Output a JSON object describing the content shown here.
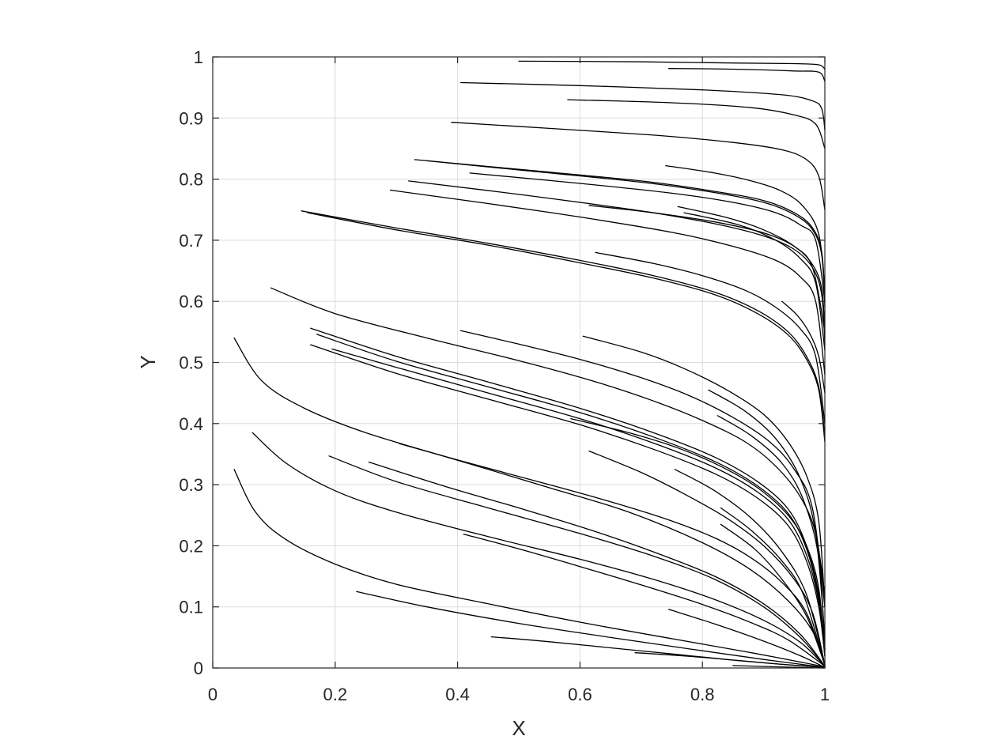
{
  "chart_data": {
    "type": "line",
    "title": "",
    "xlabel": "X",
    "ylabel": "Y",
    "xlim": [
      0,
      1
    ],
    "ylim": [
      0,
      1
    ],
    "grid": true,
    "legend": "none",
    "line_color": "#000000",
    "x_ticks": [
      0,
      0.2,
      0.4,
      0.6,
      0.8,
      1
    ],
    "y_ticks": [
      0,
      0.1,
      0.2,
      0.3,
      0.4,
      0.5,
      0.6,
      0.7,
      0.8,
      0.9,
      1
    ],
    "x_tick_labels": [
      "0",
      "0.2",
      "0.4",
      "0.6",
      "0.8",
      "1"
    ],
    "y_tick_labels": [
      "0",
      "0.1",
      "0.2",
      "0.3",
      "0.4",
      "0.5",
      "0.6",
      "0.7",
      "0.8",
      "0.9",
      "1"
    ],
    "series": [
      {
        "x": [
          0.5,
          0.7,
          0.85,
          0.95,
          0.99,
          1.0
        ],
        "y": [
          0.993,
          0.992,
          0.99,
          0.989,
          0.987,
          0.98
        ]
      },
      {
        "x": [
          0.745,
          0.85,
          0.95,
          0.99,
          1.0
        ],
        "y": [
          0.981,
          0.98,
          0.977,
          0.975,
          0.96
        ]
      },
      {
        "x": [
          0.405,
          0.6,
          0.8,
          0.93,
          0.98,
          0.995,
          1.0
        ],
        "y": [
          0.958,
          0.953,
          0.946,
          0.938,
          0.928,
          0.915,
          0.88
        ]
      },
      {
        "x": [
          0.58,
          0.75,
          0.88,
          0.95,
          0.985,
          1.0
        ],
        "y": [
          0.93,
          0.925,
          0.917,
          0.905,
          0.89,
          0.85
        ]
      },
      {
        "x": [
          0.39,
          0.55,
          0.72,
          0.85,
          0.93,
          0.97,
          0.99,
          1.0
        ],
        "y": [
          0.893,
          0.883,
          0.872,
          0.86,
          0.848,
          0.832,
          0.805,
          0.75
        ]
      },
      {
        "x": [
          0.33,
          0.5,
          0.7,
          0.82,
          0.9,
          0.95,
          0.98,
          0.995,
          1.0
        ],
        "y": [
          0.832,
          0.816,
          0.797,
          0.78,
          0.765,
          0.745,
          0.72,
          0.68,
          0.6
        ]
      },
      {
        "x": [
          0.35,
          0.5,
          0.7,
          0.82,
          0.9,
          0.95,
          0.98,
          0.995,
          1.0
        ],
        "y": [
          0.83,
          0.815,
          0.795,
          0.778,
          0.762,
          0.742,
          0.717,
          0.675,
          0.59
        ]
      },
      {
        "x": [
          0.42,
          0.6,
          0.75,
          0.85,
          0.92,
          0.96,
          0.985,
          1.0
        ],
        "y": [
          0.81,
          0.793,
          0.777,
          0.762,
          0.745,
          0.725,
          0.7,
          0.6
        ]
      },
      {
        "x": [
          0.32,
          0.5,
          0.7,
          0.82,
          0.9,
          0.95,
          0.98,
          0.995,
          1.0
        ],
        "y": [
          0.797,
          0.775,
          0.748,
          0.727,
          0.707,
          0.685,
          0.655,
          0.61,
          0.53
        ]
      },
      {
        "x": [
          0.29,
          0.45,
          0.6,
          0.75,
          0.85,
          0.92,
          0.96,
          0.985,
          1.0
        ],
        "y": [
          0.782,
          0.76,
          0.738,
          0.713,
          0.69,
          0.667,
          0.64,
          0.6,
          0.48
        ]
      },
      {
        "x": [
          0.74,
          0.82,
          0.88,
          0.93,
          0.965,
          0.99,
          1.0
        ],
        "y": [
          0.822,
          0.81,
          0.797,
          0.78,
          0.755,
          0.71,
          0.62
        ]
      },
      {
        "x": [
          0.615,
          0.72,
          0.82,
          0.9,
          0.95,
          0.98,
          0.995,
          1.0
        ],
        "y": [
          0.757,
          0.745,
          0.73,
          0.712,
          0.69,
          0.66,
          0.62,
          0.55
        ]
      },
      {
        "x": [
          0.76,
          0.84,
          0.9,
          0.95,
          0.98,
          1.0
        ],
        "y": [
          0.755,
          0.737,
          0.717,
          0.69,
          0.655,
          0.55
        ]
      },
      {
        "x": [
          0.77,
          0.86,
          0.92,
          0.96,
          0.985,
          1.0
        ],
        "y": [
          0.745,
          0.725,
          0.7,
          0.67,
          0.63,
          0.52
        ]
      },
      {
        "x": [
          0.145,
          0.3,
          0.45,
          0.6,
          0.72,
          0.82,
          0.89,
          0.94,
          0.97,
          0.99,
          1.0
        ],
        "y": [
          0.748,
          0.72,
          0.695,
          0.667,
          0.642,
          0.615,
          0.585,
          0.55,
          0.51,
          0.46,
          0.38
        ]
      },
      {
        "x": [
          0.155,
          0.3,
          0.45,
          0.6,
          0.72,
          0.82,
          0.89,
          0.94,
          0.97,
          0.99,
          1.0
        ],
        "y": [
          0.745,
          0.717,
          0.692,
          0.663,
          0.638,
          0.611,
          0.58,
          0.545,
          0.505,
          0.455,
          0.37
        ]
      },
      {
        "x": [
          0.625,
          0.72,
          0.8,
          0.87,
          0.92,
          0.96,
          0.985,
          1.0
        ],
        "y": [
          0.68,
          0.662,
          0.642,
          0.618,
          0.59,
          0.555,
          0.51,
          0.4
        ]
      },
      {
        "x": [
          0.93,
          0.955,
          0.975,
          0.99,
          1.0
        ],
        "y": [
          0.6,
          0.577,
          0.548,
          0.51,
          0.45
        ]
      },
      {
        "x": [
          0.095,
          0.2,
          0.35,
          0.5,
          0.62,
          0.72,
          0.8,
          0.87,
          0.92,
          0.96,
          0.985,
          1.0
        ],
        "y": [
          0.622,
          0.58,
          0.54,
          0.503,
          0.47,
          0.437,
          0.405,
          0.37,
          0.33,
          0.28,
          0.22,
          0.12
        ]
      },
      {
        "x": [
          0.405,
          0.5,
          0.6,
          0.7,
          0.78,
          0.85,
          0.91,
          0.95,
          0.98,
          1.0
        ],
        "y": [
          0.552,
          0.53,
          0.505,
          0.475,
          0.445,
          0.41,
          0.37,
          0.325,
          0.26,
          0.1
        ]
      },
      {
        "x": [
          0.605,
          0.7,
          0.77,
          0.84,
          0.9,
          0.94,
          0.97,
          0.99,
          1.0
        ],
        "y": [
          0.543,
          0.517,
          0.49,
          0.455,
          0.415,
          0.37,
          0.315,
          0.24,
          0.1
        ]
      },
      {
        "x": [
          0.16,
          0.3,
          0.45,
          0.6,
          0.72,
          0.82,
          0.89,
          0.94,
          0.97,
          0.99,
          1.0
        ],
        "y": [
          0.556,
          0.51,
          0.468,
          0.425,
          0.385,
          0.345,
          0.305,
          0.26,
          0.2,
          0.12,
          0.03
        ]
      },
      {
        "x": [
          0.17,
          0.3,
          0.45,
          0.6,
          0.72,
          0.82,
          0.89,
          0.94,
          0.97,
          0.99,
          1.0
        ],
        "y": [
          0.546,
          0.502,
          0.46,
          0.418,
          0.378,
          0.338,
          0.298,
          0.253,
          0.195,
          0.115,
          0.03
        ]
      },
      {
        "x": [
          0.195,
          0.3,
          0.45,
          0.6,
          0.72,
          0.82,
          0.89,
          0.94,
          0.97,
          0.99,
          1.0
        ],
        "y": [
          0.522,
          0.492,
          0.45,
          0.408,
          0.368,
          0.328,
          0.288,
          0.243,
          0.185,
          0.108,
          0.02
        ]
      },
      {
        "x": [
          0.16,
          0.3,
          0.45,
          0.6,
          0.72,
          0.82,
          0.89,
          0.94,
          0.97,
          0.99,
          1.0
        ],
        "y": [
          0.529,
          0.482,
          0.44,
          0.398,
          0.358,
          0.318,
          0.278,
          0.233,
          0.175,
          0.1,
          0.02
        ]
      },
      {
        "x": [
          0.585,
          0.68,
          0.76,
          0.83,
          0.89,
          0.94,
          0.97,
          0.99,
          1.0
        ],
        "y": [
          0.408,
          0.385,
          0.36,
          0.33,
          0.295,
          0.25,
          0.2,
          0.13,
          0.02
        ]
      },
      {
        "x": [
          0.81,
          0.87,
          0.92,
          0.96,
          0.985,
          1.0
        ],
        "y": [
          0.455,
          0.42,
          0.375,
          0.31,
          0.22,
          0.05
        ]
      },
      {
        "x": [
          0.825,
          0.88,
          0.93,
          0.965,
          0.99,
          1.0
        ],
        "y": [
          0.413,
          0.38,
          0.335,
          0.275,
          0.18,
          0.03
        ]
      },
      {
        "x": [
          0.035,
          0.08,
          0.15,
          0.25,
          0.4,
          0.55,
          0.68,
          0.8,
          0.88,
          0.94,
          0.98,
          1.0
        ],
        "y": [
          0.54,
          0.47,
          0.425,
          0.385,
          0.34,
          0.295,
          0.255,
          0.205,
          0.16,
          0.11,
          0.06,
          0.005
        ]
      },
      {
        "x": [
          0.305,
          0.42,
          0.55,
          0.65,
          0.74,
          0.82,
          0.88,
          0.93,
          0.97,
          1.0
        ],
        "y": [
          0.367,
          0.335,
          0.3,
          0.272,
          0.244,
          0.213,
          0.18,
          0.14,
          0.09,
          0.005
        ]
      },
      {
        "x": [
          0.615,
          0.7,
          0.77,
          0.84,
          0.9,
          0.95,
          0.98,
          1.0
        ],
        "y": [
          0.355,
          0.32,
          0.285,
          0.245,
          0.2,
          0.145,
          0.09,
          0.005
        ]
      },
      {
        "x": [
          0.755,
          0.82,
          0.88,
          0.93,
          0.97,
          1.0
        ],
        "y": [
          0.325,
          0.29,
          0.245,
          0.19,
          0.12,
          0.005
        ]
      },
      {
        "x": [
          0.83,
          0.88,
          0.93,
          0.965,
          1.0
        ],
        "y": [
          0.262,
          0.225,
          0.175,
          0.12,
          0.005
        ]
      },
      {
        "x": [
          0.83,
          0.885,
          0.93,
          0.97,
          1.0
        ],
        "y": [
          0.235,
          0.195,
          0.145,
          0.085,
          0.005
        ]
      },
      {
        "x": [
          0.065,
          0.12,
          0.2,
          0.3,
          0.45,
          0.6,
          0.72,
          0.82,
          0.9,
          0.96,
          1.0
        ],
        "y": [
          0.385,
          0.335,
          0.29,
          0.255,
          0.215,
          0.178,
          0.145,
          0.112,
          0.078,
          0.042,
          0.003
        ]
      },
      {
        "x": [
          0.19,
          0.3,
          0.45,
          0.6,
          0.72,
          0.82,
          0.9,
          0.96,
          1.0
        ],
        "y": [
          0.347,
          0.305,
          0.262,
          0.22,
          0.183,
          0.145,
          0.1,
          0.05,
          0.003
        ]
      },
      {
        "x": [
          0.255,
          0.38,
          0.5,
          0.62,
          0.72,
          0.82,
          0.9,
          0.96,
          1.0
        ],
        "y": [
          0.337,
          0.297,
          0.262,
          0.225,
          0.19,
          0.15,
          0.105,
          0.055,
          0.003
        ]
      },
      {
        "x": [
          0.41,
          0.5,
          0.6,
          0.7,
          0.8,
          0.88,
          0.94,
          1.0
        ],
        "y": [
          0.219,
          0.195,
          0.166,
          0.136,
          0.104,
          0.074,
          0.046,
          0.003
        ]
      },
      {
        "x": [
          0.035,
          0.07,
          0.12,
          0.2,
          0.3,
          0.45,
          0.6,
          0.75,
          0.88,
          1.0
        ],
        "y": [
          0.325,
          0.255,
          0.21,
          0.17,
          0.137,
          0.105,
          0.075,
          0.048,
          0.025,
          0.002
        ]
      },
      {
        "x": [
          0.235,
          0.35,
          0.5,
          0.65,
          0.78,
          0.9,
          1.0
        ],
        "y": [
          0.125,
          0.1,
          0.073,
          0.05,
          0.031,
          0.014,
          0.001
        ]
      },
      {
        "x": [
          0.745,
          0.82,
          0.9,
          0.96,
          1.0
        ],
        "y": [
          0.096,
          0.072,
          0.044,
          0.02,
          0.001
        ]
      },
      {
        "x": [
          0.455,
          0.55,
          0.65,
          0.75,
          0.85,
          0.93,
          1.0
        ],
        "y": [
          0.051,
          0.043,
          0.033,
          0.023,
          0.013,
          0.006,
          0.001
        ]
      },
      {
        "x": [
          0.69,
          0.78,
          0.86,
          0.93,
          1.0
        ],
        "y": [
          0.025,
          0.019,
          0.012,
          0.006,
          0.001
        ]
      },
      {
        "x": [
          0.85,
          0.92,
          1.0
        ],
        "y": [
          0.004,
          0.002,
          0.0
        ]
      }
    ]
  }
}
